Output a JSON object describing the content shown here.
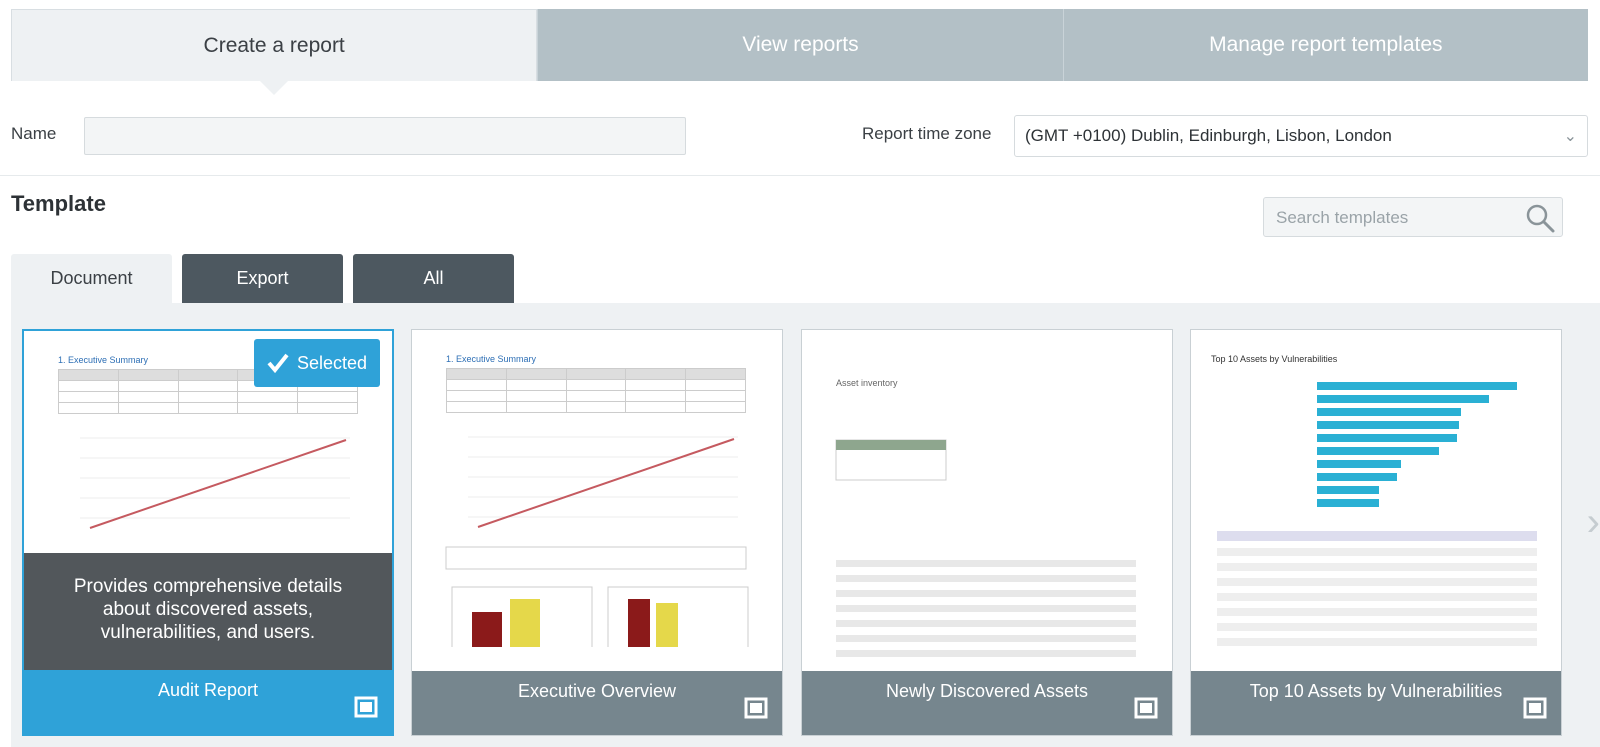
{
  "tabs": {
    "create": "Create a report",
    "view": "View reports",
    "manage": "Manage report templates"
  },
  "form": {
    "name_label": "Name",
    "name_value": "",
    "timezone_label": "Report time zone",
    "timezone_value": "(GMT +0100) Dublin, Edinburgh, Lisbon, London"
  },
  "template": {
    "title": "Template",
    "search_placeholder": "Search templates",
    "filters": [
      "Document",
      "Export",
      "All"
    ],
    "selected_badge": "Selected",
    "cards": [
      {
        "title": "Audit Report",
        "description": "Provides comprehensive details about discovered assets, vulnerabilities, and users.",
        "thumb_heading": "1. Executive Summary"
      },
      {
        "title": "Executive Overview",
        "thumb_heading": "1. Executive Summary"
      },
      {
        "title": "Newly Discovered Assets",
        "thumb_heading": "Asset inventory"
      },
      {
        "title": "Top 10 Assets by Vulnerabilities",
        "thumb_heading": "Top 10 Assets by Vulnerabilities"
      }
    ]
  },
  "colors": {
    "accent": "#2fa2d8",
    "tab_inactive": "#b3c0c6",
    "filter_tab": "#4d5860",
    "card_footer": "#76868e"
  }
}
